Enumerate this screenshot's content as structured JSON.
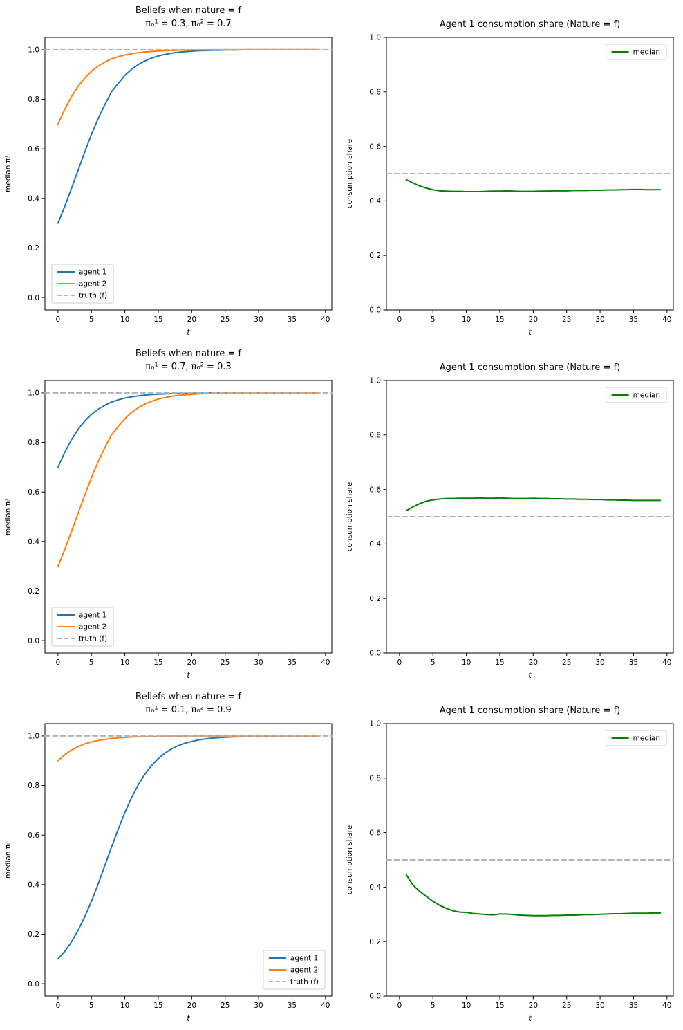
{
  "figure": {
    "background": "#ffffff"
  },
  "colors": {
    "agent1": "#1f77b4",
    "agent2": "#ff7f0e",
    "median": "#008000",
    "truth_dashed": "#b3b3b3",
    "axis": "#000000"
  },
  "chart_data": [
    {
      "type": "line",
      "title": "Beliefs when nature = f",
      "subtitle": "π₀¹ = 0.3, π₀² = 0.7",
      "xlabel": "t",
      "ylabel": "median πᵢᵗ",
      "xlim": [
        -1.95,
        40.95
      ],
      "ylim": [
        -0.05,
        1.05
      ],
      "xticks": [
        0,
        5,
        10,
        15,
        20,
        25,
        30,
        35,
        40
      ],
      "yticks": [
        0,
        0.2,
        0.4,
        0.6,
        0.8,
        1.0
      ],
      "grid": false,
      "legend": "lower-left",
      "series": [
        {
          "name": "agent 1",
          "color": "#1f77b4",
          "x_start": 0,
          "x_step": 1,
          "y": [
            0.3,
            0.367,
            0.439,
            0.513,
            0.587,
            0.658,
            0.722,
            0.778,
            0.83,
            0.864,
            0.896,
            0.921,
            0.94,
            0.955,
            0.966,
            0.975,
            0.981,
            0.986,
            0.99,
            0.992,
            0.994,
            0.996,
            0.997,
            0.998,
            0.998,
            0.999,
            0.999,
            0.999,
            1.0,
            1.0,
            1.0,
            1.0,
            1.0,
            1.0,
            1.0,
            1.0,
            1.0,
            1.0,
            1.0,
            1.0
          ]
        },
        {
          "name": "agent 2",
          "color": "#ff7f0e",
          "x_start": 0,
          "x_step": 1,
          "y": [
            0.7,
            0.759,
            0.81,
            0.852,
            0.886,
            0.913,
            0.934,
            0.95,
            0.963,
            0.972,
            0.979,
            0.984,
            0.988,
            0.991,
            0.993,
            0.995,
            0.996,
            0.997,
            0.998,
            0.998,
            0.999,
            0.999,
            0.999,
            1.0,
            1.0,
            1.0,
            1.0,
            1.0,
            1.0,
            1.0,
            1.0,
            1.0,
            1.0,
            1.0,
            1.0,
            1.0,
            1.0,
            1.0,
            1.0,
            1.0
          ]
        },
        {
          "name": "truth (f)",
          "color": "#b3b3b3",
          "dashed": true,
          "y_const": 1.0
        }
      ]
    },
    {
      "type": "line",
      "title": "Agent 1 consumption share (Nature = f)",
      "xlabel": "t",
      "ylabel": "consumption share",
      "xlim": [
        -1.95,
        40.95
      ],
      "ylim": [
        0,
        1
      ],
      "xticks": [
        0,
        5,
        10,
        15,
        20,
        25,
        30,
        35,
        40
      ],
      "yticks": [
        0,
        0.2,
        0.4,
        0.6,
        0.8,
        1.0
      ],
      "grid": false,
      "legend": "upper-right",
      "series": [
        {
          "name": "median",
          "color": "#008000",
          "x_start": 1,
          "x_step": 1,
          "y": [
            0.478,
            0.466,
            0.455,
            0.447,
            0.441,
            0.437,
            0.436,
            0.435,
            0.435,
            0.434,
            0.434,
            0.434,
            0.435,
            0.436,
            0.436,
            0.437,
            0.436,
            0.435,
            0.435,
            0.435,
            0.436,
            0.436,
            0.437,
            0.437,
            0.437,
            0.438,
            0.438,
            0.438,
            0.439,
            0.439,
            0.44,
            0.44,
            0.441,
            0.441,
            0.442,
            0.442,
            0.441,
            0.441,
            0.441
          ]
        },
        {
          "color": "#b3b3b3",
          "dashed": true,
          "y_const": 0.5,
          "in_legend": false
        }
      ]
    },
    {
      "type": "line",
      "title": "Beliefs when nature = f",
      "subtitle": "π₀¹ = 0.7, π₀² = 0.3",
      "xlabel": "t",
      "ylabel": "median πᵢᵗ",
      "xlim": [
        -1.95,
        40.95
      ],
      "ylim": [
        -0.05,
        1.05
      ],
      "xticks": [
        0,
        5,
        10,
        15,
        20,
        25,
        30,
        35,
        40
      ],
      "yticks": [
        0,
        0.2,
        0.4,
        0.6,
        0.8,
        1.0
      ],
      "grid": false,
      "legend": "lower-left",
      "series": [
        {
          "name": "agent 1",
          "color": "#1f77b4",
          "x_start": 0,
          "x_step": 1,
          "y": [
            0.7,
            0.759,
            0.81,
            0.852,
            0.886,
            0.913,
            0.934,
            0.95,
            0.963,
            0.972,
            0.979,
            0.984,
            0.988,
            0.991,
            0.993,
            0.995,
            0.996,
            0.997,
            0.998,
            0.998,
            0.999,
            0.999,
            0.999,
            1.0,
            1.0,
            1.0,
            1.0,
            1.0,
            1.0,
            1.0,
            1.0,
            1.0,
            1.0,
            1.0,
            1.0,
            1.0,
            1.0,
            1.0,
            1.0,
            1.0
          ]
        },
        {
          "name": "agent 2",
          "color": "#ff7f0e",
          "x_start": 0,
          "x_step": 1,
          "y": [
            0.3,
            0.367,
            0.439,
            0.513,
            0.587,
            0.658,
            0.722,
            0.778,
            0.83,
            0.864,
            0.896,
            0.921,
            0.94,
            0.955,
            0.966,
            0.975,
            0.981,
            0.986,
            0.99,
            0.992,
            0.994,
            0.996,
            0.997,
            0.998,
            0.998,
            0.999,
            0.999,
            0.999,
            1.0,
            1.0,
            1.0,
            1.0,
            1.0,
            1.0,
            1.0,
            1.0,
            1.0,
            1.0,
            1.0,
            1.0
          ]
        },
        {
          "name": "truth (f)",
          "color": "#b3b3b3",
          "dashed": true,
          "y_const": 1.0
        }
      ]
    },
    {
      "type": "line",
      "title": "Agent 1 consumption share (Nature = f)",
      "xlabel": "t",
      "ylabel": "consumption share",
      "xlim": [
        -1.95,
        40.95
      ],
      "ylim": [
        0,
        1
      ],
      "xticks": [
        0,
        5,
        10,
        15,
        20,
        25,
        30,
        35,
        40
      ],
      "yticks": [
        0,
        0.2,
        0.4,
        0.6,
        0.8,
        1.0
      ],
      "grid": false,
      "legend": "upper-right",
      "series": [
        {
          "name": "median",
          "color": "#008000",
          "x_start": 1,
          "x_step": 1,
          "y": [
            0.522,
            0.536,
            0.548,
            0.557,
            0.562,
            0.565,
            0.567,
            0.567,
            0.568,
            0.568,
            0.568,
            0.569,
            0.568,
            0.568,
            0.569,
            0.568,
            0.567,
            0.567,
            0.567,
            0.568,
            0.567,
            0.567,
            0.566,
            0.566,
            0.565,
            0.565,
            0.564,
            0.564,
            0.563,
            0.563,
            0.562,
            0.562,
            0.561,
            0.561,
            0.56,
            0.56,
            0.56,
            0.56,
            0.56
          ]
        },
        {
          "color": "#b3b3b3",
          "dashed": true,
          "y_const": 0.5,
          "in_legend": false
        }
      ]
    },
    {
      "type": "line",
      "title": "Beliefs when nature = f",
      "subtitle": "π₀¹ = 0.1, π₀² = 0.9",
      "xlabel": "t",
      "ylabel": "median πᵢᵗ",
      "xlim": [
        -1.95,
        40.95
      ],
      "ylim": [
        -0.05,
        1.05
      ],
      "xticks": [
        0,
        5,
        10,
        15,
        20,
        25,
        30,
        35,
        40
      ],
      "yticks": [
        0,
        0.2,
        0.4,
        0.6,
        0.8,
        1.0
      ],
      "grid": false,
      "legend": "lower-right",
      "series": [
        {
          "name": "agent 1",
          "color": "#1f77b4",
          "x_start": 0,
          "x_step": 1,
          "y": [
            0.1,
            0.13,
            0.168,
            0.215,
            0.27,
            0.332,
            0.402,
            0.476,
            0.551,
            0.623,
            0.691,
            0.751,
            0.803,
            0.846,
            0.881,
            0.909,
            0.931,
            0.948,
            0.961,
            0.971,
            0.978,
            0.984,
            0.988,
            0.991,
            0.993,
            0.995,
            0.996,
            0.997,
            0.998,
            0.998,
            0.999,
            0.999,
            0.999,
            1.0,
            1.0,
            1.0,
            1.0,
            1.0,
            1.0,
            1.0
          ]
        },
        {
          "name": "agent 2",
          "color": "#ff7f0e",
          "x_start": 0,
          "x_step": 1,
          "y": [
            0.9,
            0.924,
            0.943,
            0.957,
            0.968,
            0.976,
            0.982,
            0.986,
            0.99,
            0.992,
            0.994,
            0.996,
            0.997,
            0.997,
            0.998,
            0.998,
            0.999,
            0.999,
            0.999,
            1.0,
            1.0,
            1.0,
            1.0,
            1.0,
            1.0,
            1.0,
            1.0,
            1.0,
            1.0,
            1.0,
            1.0,
            1.0,
            1.0,
            1.0,
            1.0,
            1.0,
            1.0,
            1.0,
            1.0,
            1.0
          ]
        },
        {
          "name": "truth (f)",
          "color": "#b3b3b3",
          "dashed": true,
          "y_const": 1.0
        }
      ]
    },
    {
      "type": "line",
      "title": "Agent 1 consumption share (Nature = f)",
      "xlabel": "t",
      "ylabel": "consumption share",
      "xlim": [
        -1.95,
        40.95
      ],
      "ylim": [
        0,
        1
      ],
      "xticks": [
        0,
        5,
        10,
        15,
        20,
        25,
        30,
        35,
        40
      ],
      "yticks": [
        0,
        0.2,
        0.4,
        0.6,
        0.8,
        1.0
      ],
      "grid": false,
      "legend": "upper-right",
      "series": [
        {
          "name": "median",
          "color": "#008000",
          "x_start": 1,
          "x_step": 1,
          "y": [
            0.446,
            0.408,
            0.385,
            0.366,
            0.348,
            0.333,
            0.322,
            0.313,
            0.308,
            0.307,
            0.303,
            0.301,
            0.299,
            0.298,
            0.301,
            0.301,
            0.299,
            0.297,
            0.296,
            0.295,
            0.295,
            0.295,
            0.296,
            0.296,
            0.297,
            0.297,
            0.298,
            0.299,
            0.299,
            0.3,
            0.301,
            0.302,
            0.302,
            0.303,
            0.304,
            0.304,
            0.304,
            0.305,
            0.305
          ]
        },
        {
          "color": "#b3b3b3",
          "dashed": true,
          "y_const": 0.5,
          "in_legend": false
        }
      ]
    }
  ]
}
